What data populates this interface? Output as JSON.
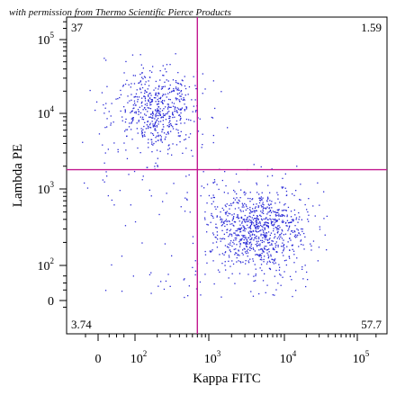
{
  "credit": "with permission from Thermo Scientific Pierce Products",
  "chart_data": {
    "type": "scatter",
    "xlabel": "Kappa FITC",
    "ylabel": "Lambda PE",
    "x_scale": "biexponential",
    "y_scale": "biexponential",
    "x_ticks": [
      {
        "base": "0",
        "exp": ""
      },
      {
        "base": "10",
        "exp": "2"
      },
      {
        "base": "10",
        "exp": "3"
      },
      {
        "base": "10",
        "exp": "4"
      },
      {
        "base": "10",
        "exp": "5"
      }
    ],
    "y_ticks": [
      {
        "base": "0",
        "exp": ""
      },
      {
        "base": "10",
        "exp": "2"
      },
      {
        "base": "10",
        "exp": "3"
      },
      {
        "base": "10",
        "exp": "4"
      },
      {
        "base": "10",
        "exp": "5"
      }
    ],
    "gate": {
      "x": 700,
      "y": 1800,
      "color": "#c2188f"
    },
    "quadrants": {
      "upper_left": "37",
      "upper_right": "1.59",
      "lower_left": "3.74",
      "lower_right": "57.7"
    },
    "point_color": "#2a2ad6",
    "populations": [
      {
        "quadrant": "upper_left",
        "center_x": 200,
        "center_y": 11000,
        "count": 560
      },
      {
        "quadrant": "lower_right",
        "center_x": 4500,
        "center_y": 300,
        "count": 860
      },
      {
        "quadrant": "background",
        "count": 170
      }
    ]
  }
}
